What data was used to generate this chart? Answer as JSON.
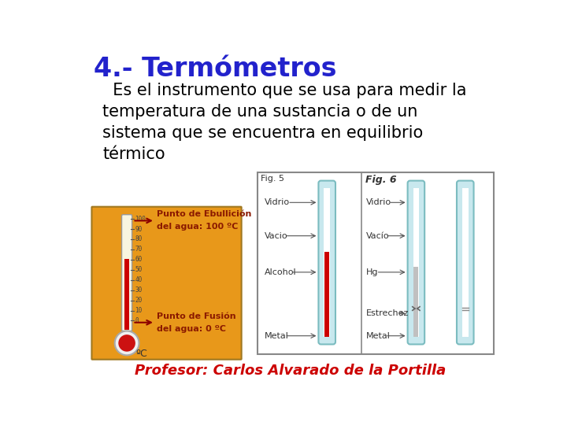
{
  "title": "4.- Termómetros",
  "title_color": "#2222CC",
  "title_fontsize": 24,
  "body_text": "  Es el instrumento que se usa para medir la\ntemperatura de una sustancia o de un\nsistema que se encuentra en equilibrio\ntérmico",
  "body_fontsize": 15,
  "professor_text": "Profesor: Carlos Alvarado de la Portilla",
  "professor_color": "#CC0000",
  "professor_fontsize": 13,
  "background_color": "#ffffff",
  "fig5_label": "Fig. 5",
  "fig6_label": "Fig. 6",
  "thermo_orange_bg": "#E8981A",
  "thermo_labels_left": [
    "Vidrio",
    "Vacio",
    "Alcohol",
    "Metal"
  ],
  "thermo_labels_right": [
    "Vidrio",
    "Vacío",
    "Hg",
    "Estrechez",
    "Metal"
  ],
  "punto_ebullicion_line1": "Punto de Ebullición",
  "punto_ebullicion_line2": "del agua: 100 ºC",
  "punto_fusion_line1": "Punto de Fusión",
  "punto_fusion_line2": "del agua: 0 ºC"
}
